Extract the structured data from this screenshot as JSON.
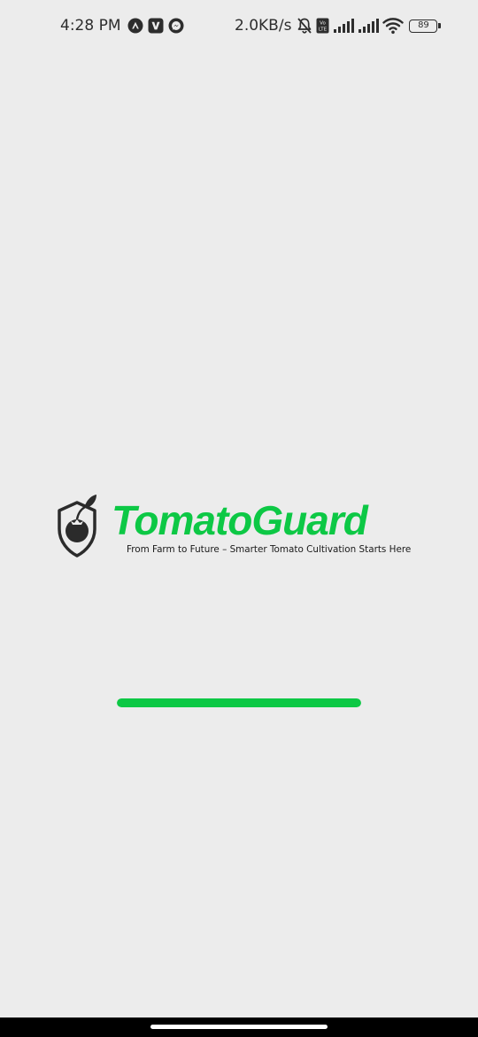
{
  "status_bar": {
    "time": "4:28 PM",
    "notification_icons": [
      "navigation-a-icon",
      "v-app-icon",
      "messenger-icon"
    ],
    "net_speed": "2.0KB/s",
    "system_icons": [
      "silent-bell-icon",
      "volte-icon",
      "signal-icon",
      "signal-icon",
      "wifi-icon"
    ],
    "battery_level": "89"
  },
  "splash": {
    "brand_name": "TomatoGuard",
    "tagline": "From Farm to Future – Smarter Tomato Cultivation Starts Here",
    "logo_icon": "tomato-shield-icon",
    "progress": 1.0
  },
  "colors": {
    "brand_green": "#0dc845",
    "background": "#ececec",
    "icon_dark": "#2b2b2b"
  }
}
